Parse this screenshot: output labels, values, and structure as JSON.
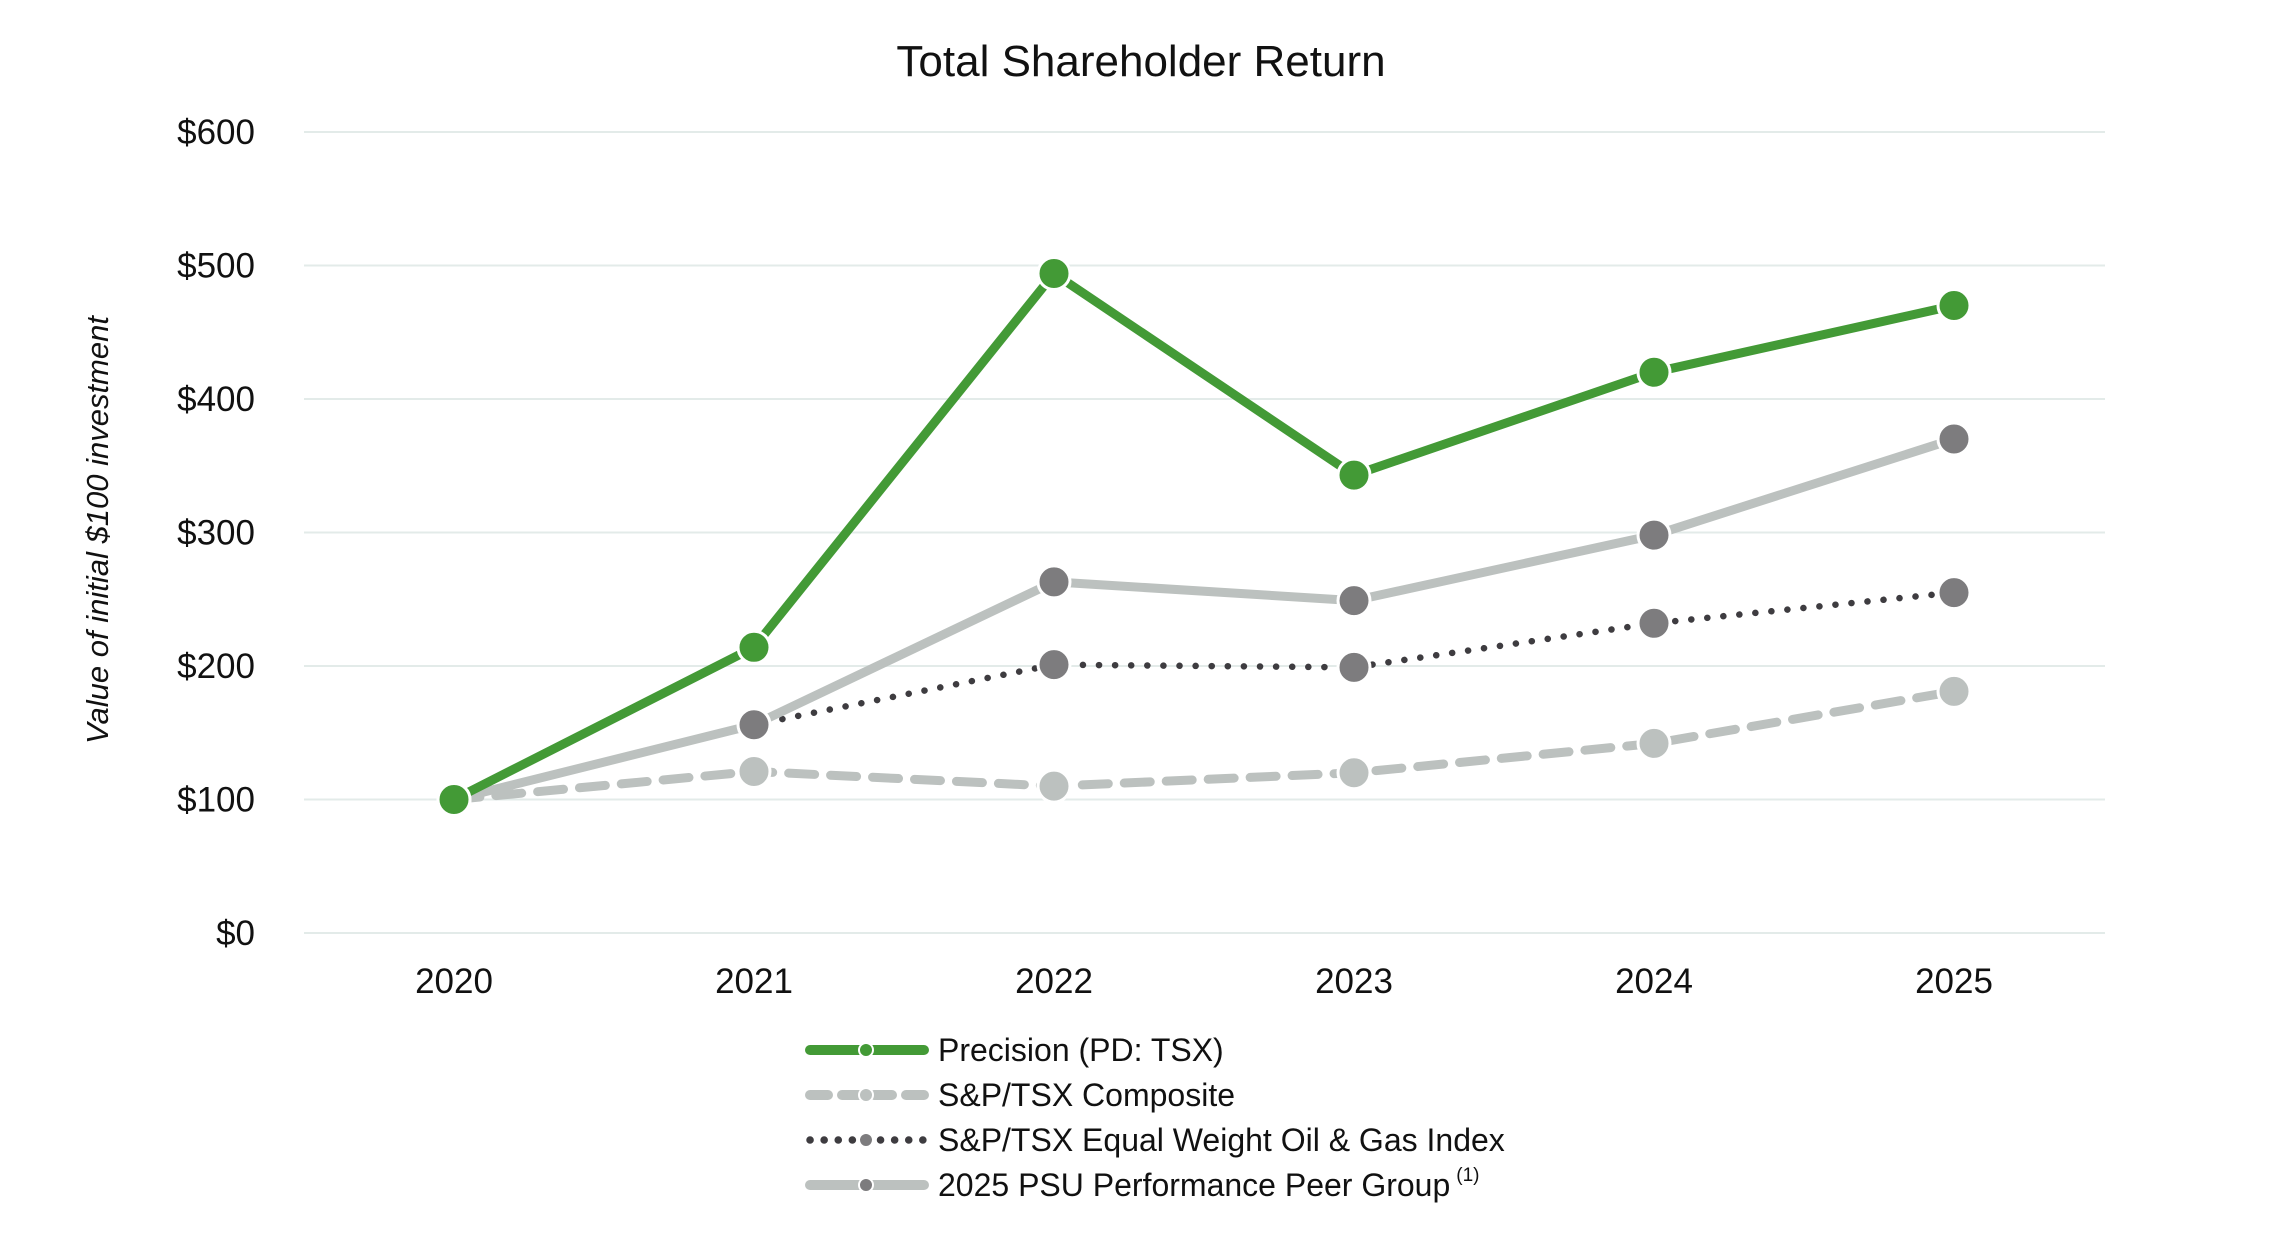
{
  "chart_data": {
    "type": "line",
    "title": "Total Shareholder Return",
    "xlabel": "",
    "ylabel": "Value of initial $100 investment",
    "categories": [
      "2020",
      "2021",
      "2022",
      "2023",
      "2024",
      "2025"
    ],
    "ylim": [
      0,
      600
    ],
    "yticks": [
      0,
      100,
      200,
      300,
      400,
      500,
      600
    ],
    "ytick_labels": [
      "$0",
      "$100",
      "$200",
      "$300",
      "$400",
      "$500",
      "$600"
    ],
    "grid": "horizontal",
    "legend_position": "bottom",
    "series": [
      {
        "name": "Precision (PD: TSX)",
        "values": [
          100,
          214,
          494,
          343,
          420,
          470
        ],
        "color": "#439a36",
        "marker_color": "#439a36",
        "style": "solid",
        "superscript": ""
      },
      {
        "name": "S&P/TSX Composite",
        "values": [
          100,
          121,
          110,
          120,
          142,
          181
        ],
        "color": "#bcc1bf",
        "marker_color": "#bcc1bf",
        "style": "dashed",
        "superscript": ""
      },
      {
        "name": "S&P/TSX Equal Weight Oil & Gas Index",
        "values": [
          100,
          156,
          201,
          199,
          232,
          255
        ],
        "color": "#3e3c40",
        "marker_color": "#7d7c7e",
        "style": "dotted",
        "superscript": ""
      },
      {
        "name": "2025 PSU Performance Peer Group",
        "values": [
          100,
          156,
          263,
          249,
          298,
          370
        ],
        "color": "#bcc1bf",
        "marker_color": "#7d7c7e",
        "style": "solid",
        "superscript": "(1)"
      }
    ]
  }
}
